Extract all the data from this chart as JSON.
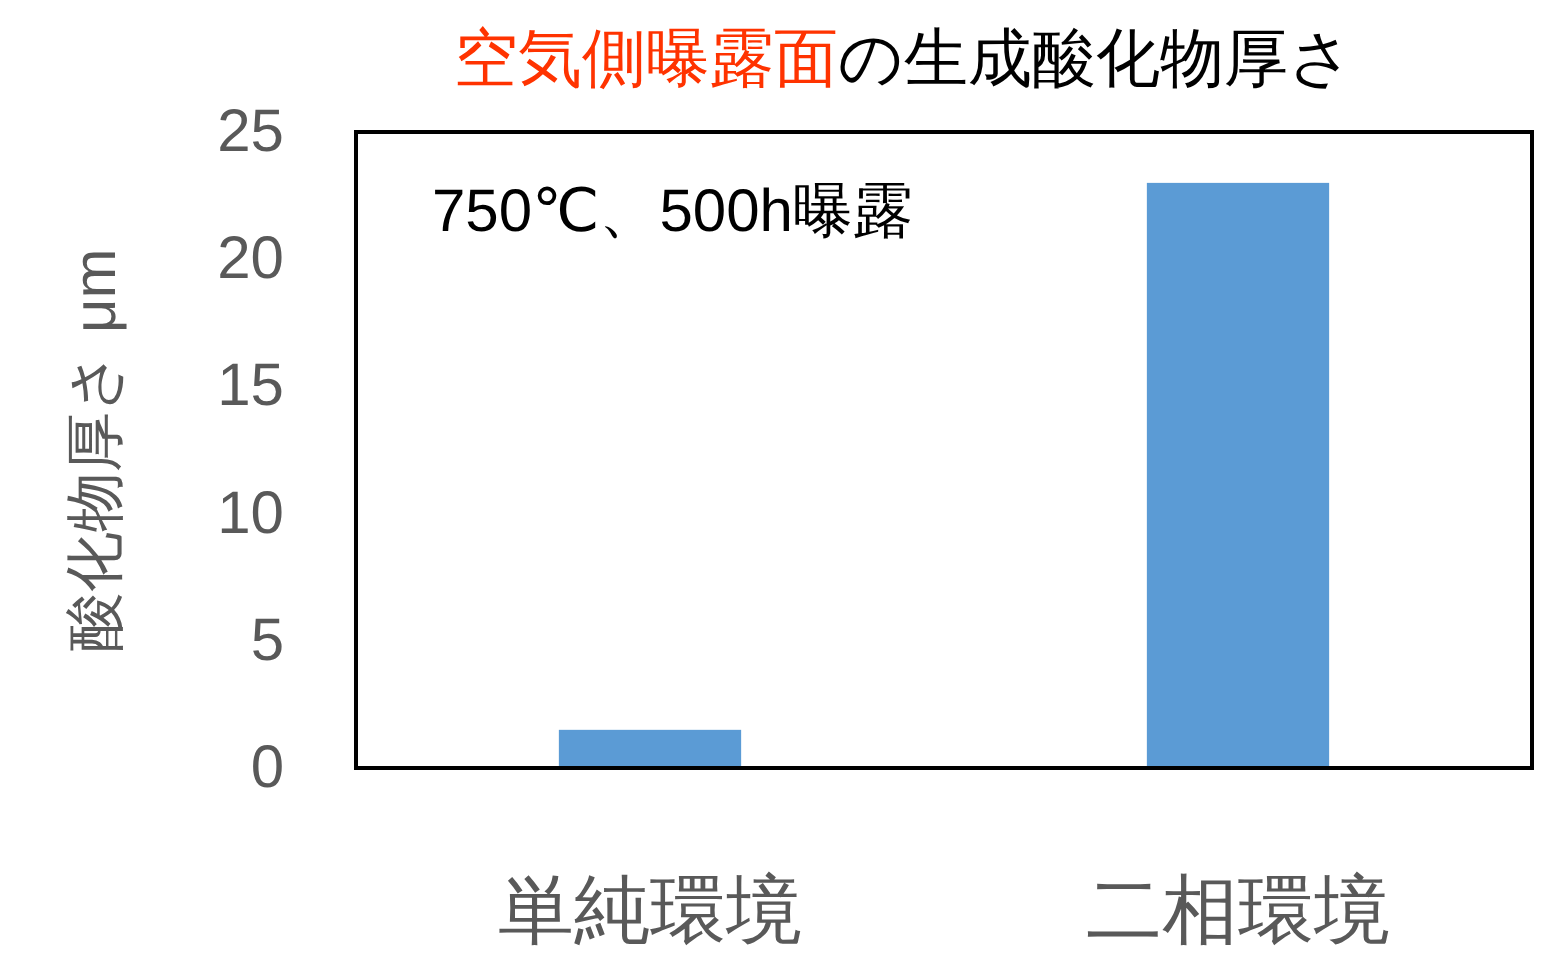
{
  "chart_data": {
    "type": "bar",
    "title": "空気側曝露面の生成酸化物厚さ",
    "ylabel": "酸化物厚さ μm",
    "categories": [
      "単純環境",
      "二相環境"
    ],
    "values": [
      1.5,
      23
    ],
    "color": "#5b9bd5",
    "ylim": [
      0,
      25
    ],
    "yticks": [
      0,
      5,
      10,
      15,
      20,
      25
    ],
    "annotations": [
      "750℃、500h曝露"
    ]
  }
}
